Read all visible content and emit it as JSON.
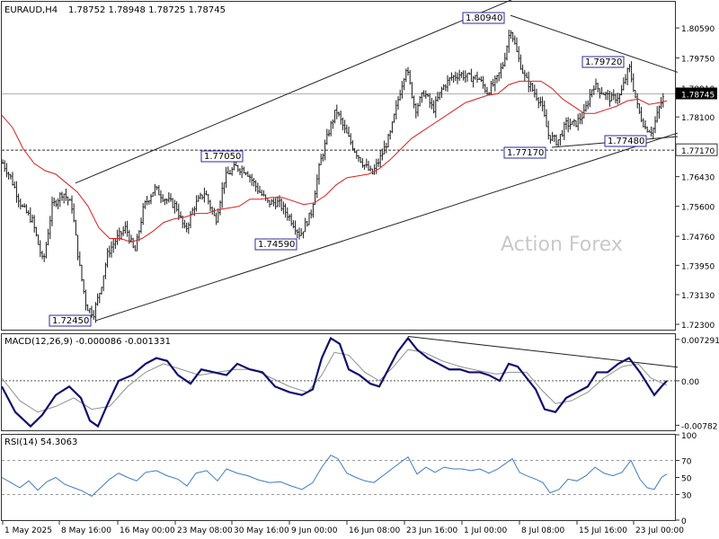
{
  "header": {
    "symbol": "EURAUD,H4",
    "ohlc": "1.78752 1.78948 1.78725 1.78745"
  },
  "watermark": "Action Forex",
  "colors": {
    "candle": "#1a1a1a",
    "ma": "#d62020",
    "macd": "#10106e",
    "signal": "#909090",
    "rsi": "#3c7bc8",
    "trendline": "#222222",
    "label_border": "#2a2aa0",
    "current_price_bg": "#000000"
  },
  "chart_data": [
    {
      "type": "candlestick",
      "title": "EURAUD,H4",
      "ylim": [
        1.7215,
        1.8132
      ],
      "y_ticks": [
        "1.80590",
        "1.79750",
        "1.78910",
        "1.78100",
        "1.77170",
        "1.76430",
        "1.75600",
        "1.74760",
        "1.73950",
        "1.73130",
        "1.72300"
      ],
      "x_ticks": [
        "1 May 2025",
        "8 May 16:00",
        "16 May 00:00",
        "23 May 08:00",
        "30 May 16:00",
        "9 Jun 00:00",
        "16 Jun 08:00",
        "23 Jun 16:00",
        "1 Jul 00:00",
        "8 Jul 08:00",
        "15 Jul 16:00",
        "23 Jul 00:00"
      ],
      "current_price": "1.78745",
      "horizontal_level": "1.77170",
      "annotations": [
        {
          "label": "1.72450",
          "value": 1.7245
        },
        {
          "label": "1.77050",
          "value": 1.7705
        },
        {
          "label": "1.74590",
          "value": 1.7459
        },
        {
          "label": "1.80940",
          "value": 1.8094
        },
        {
          "label": "1.77170",
          "value": 1.7717
        },
        {
          "label": "1.79720",
          "value": 1.7972
        },
        {
          "label": "1.77480",
          "value": 1.7748
        }
      ],
      "close_path": [
        [
          0,
          1.7695
        ],
        [
          12,
          1.764
        ],
        [
          24,
          1.756
        ],
        [
          36,
          1.752
        ],
        [
          48,
          1.74
        ],
        [
          58,
          1.756
        ],
        [
          70,
          1.76
        ],
        [
          80,
          1.756
        ],
        [
          88,
          1.74
        ],
        [
          96,
          1.728
        ],
        [
          104,
          1.726
        ],
        [
          112,
          1.733
        ],
        [
          120,
          1.743
        ],
        [
          130,
          1.747
        ],
        [
          140,
          1.75
        ],
        [
          150,
          1.743
        ],
        [
          160,
          1.756
        ],
        [
          172,
          1.761
        ],
        [
          184,
          1.758
        ],
        [
          196,
          1.756
        ],
        [
          206,
          1.749
        ],
        [
          216,
          1.756
        ],
        [
          228,
          1.76
        ],
        [
          240,
          1.752
        ],
        [
          250,
          1.764
        ],
        [
          262,
          1.767
        ],
        [
          274,
          1.766
        ],
        [
          286,
          1.761
        ],
        [
          298,
          1.757
        ],
        [
          310,
          1.757
        ],
        [
          322,
          1.753
        ],
        [
          334,
          1.748
        ],
        [
          346,
          1.754
        ],
        [
          356,
          1.768
        ],
        [
          366,
          1.777
        ],
        [
          374,
          1.783
        ],
        [
          384,
          1.777
        ],
        [
          394,
          1.772
        ],
        [
          404,
          1.768
        ],
        [
          414,
          1.765
        ],
        [
          424,
          1.77
        ],
        [
          434,
          1.776
        ],
        [
          444,
          1.787
        ],
        [
          452,
          1.795
        ],
        [
          462,
          1.783
        ],
        [
          472,
          1.788
        ],
        [
          482,
          1.783
        ],
        [
          492,
          1.789
        ],
        [
          502,
          1.792
        ],
        [
          512,
          1.793
        ],
        [
          522,
          1.792
        ],
        [
          532,
          1.792
        ],
        [
          542,
          1.788
        ],
        [
          552,
          1.791
        ],
        [
          560,
          1.796
        ],
        [
          568,
          1.806
        ],
        [
          576,
          1.798
        ],
        [
          584,
          1.792
        ],
        [
          594,
          1.788
        ],
        [
          602,
          1.785
        ],
        [
          610,
          1.776
        ],
        [
          620,
          1.774
        ],
        [
          630,
          1.779
        ],
        [
          640,
          1.779
        ],
        [
          650,
          1.782
        ],
        [
          660,
          1.79
        ],
        [
          670,
          1.788
        ],
        [
          680,
          1.786
        ],
        [
          690,
          1.787
        ],
        [
          700,
          1.795
        ],
        [
          710,
          1.783
        ],
        [
          718,
          1.778
        ],
        [
          726,
          1.777
        ],
        [
          734,
          1.784
        ],
        [
          740,
          1.7875
        ]
      ],
      "ma_path": [
        [
          0,
          1.7815
        ],
        [
          12,
          1.778
        ],
        [
          24,
          1.772
        ],
        [
          36,
          1.768
        ],
        [
          48,
          1.766
        ],
        [
          60,
          1.765
        ],
        [
          72,
          1.7625
        ],
        [
          84,
          1.76
        ],
        [
          96,
          1.756
        ],
        [
          108,
          1.75
        ],
        [
          120,
          1.747
        ],
        [
          132,
          1.747
        ],
        [
          144,
          1.746
        ],
        [
          156,
          1.747
        ],
        [
          168,
          1.749
        ],
        [
          180,
          1.7515
        ],
        [
          192,
          1.7525
        ],
        [
          204,
          1.753
        ],
        [
          216,
          1.754
        ],
        [
          228,
          1.754
        ],
        [
          240,
          1.755
        ],
        [
          252,
          1.7555
        ],
        [
          264,
          1.756
        ],
        [
          276,
          1.758
        ],
        [
          288,
          1.758
        ],
        [
          300,
          1.7585
        ],
        [
          312,
          1.7585
        ],
        [
          324,
          1.7575
        ],
        [
          336,
          1.7565
        ],
        [
          348,
          1.757
        ],
        [
          360,
          1.759
        ],
        [
          372,
          1.762
        ],
        [
          384,
          1.764
        ],
        [
          396,
          1.7645
        ],
        [
          408,
          1.765
        ],
        [
          420,
          1.7665
        ],
        [
          432,
          1.769
        ],
        [
          444,
          1.772
        ],
        [
          456,
          1.775
        ],
        [
          468,
          1.777
        ],
        [
          480,
          1.779
        ],
        [
          492,
          1.781
        ],
        [
          504,
          1.783
        ],
        [
          516,
          1.785
        ],
        [
          528,
          1.786
        ],
        [
          540,
          1.787
        ],
        [
          552,
          1.7875
        ],
        [
          564,
          1.79
        ],
        [
          576,
          1.791
        ],
        [
          588,
          1.791
        ],
        [
          600,
          1.791
        ],
        [
          612,
          1.789
        ],
        [
          624,
          1.786
        ],
        [
          636,
          1.784
        ],
        [
          648,
          1.782
        ],
        [
          660,
          1.782
        ],
        [
          672,
          1.783
        ],
        [
          684,
          1.784
        ],
        [
          696,
          1.7855
        ],
        [
          708,
          1.786
        ],
        [
          720,
          1.7845
        ],
        [
          732,
          1.785
        ],
        [
          740,
          1.7855
        ]
      ],
      "trendlines": [
        {
          "from": [
            82,
            1.7625
          ],
          "to": [
            612,
            1.8185
          ]
        },
        {
          "from": [
            104,
            1.724
          ],
          "to": [
            752,
            1.7765
          ]
        },
        {
          "from": [
            566,
            1.8094
          ],
          "to": [
            752,
            1.7935
          ]
        },
        {
          "from": [
            612,
            1.7725
          ],
          "to": [
            752,
            1.7755
          ]
        }
      ]
    },
    {
      "type": "line",
      "title": "MACD(12,26,9) -0.000086 -0.001331",
      "ylim": [
        -0.0087,
        0.0082
      ],
      "y_ticks": [
        "0.007291",
        "0.00",
        "-0.00782"
      ],
      "zero_line": 0,
      "macd_path": [
        [
          0,
          -0.001
        ],
        [
          15,
          -0.0055
        ],
        [
          32,
          -0.008
        ],
        [
          45,
          -0.006
        ],
        [
          60,
          -0.0025
        ],
        [
          75,
          -0.001
        ],
        [
          88,
          -0.003
        ],
        [
          98,
          -0.007
        ],
        [
          107,
          -0.008
        ],
        [
          118,
          -0.004
        ],
        [
          130,
          0.0
        ],
        [
          145,
          0.001
        ],
        [
          160,
          0.003
        ],
        [
          172,
          0.004
        ],
        [
          184,
          0.0035
        ],
        [
          196,
          0.001
        ],
        [
          210,
          -0.0005
        ],
        [
          222,
          0.002
        ],
        [
          236,
          0.0015
        ],
        [
          250,
          0.001
        ],
        [
          262,
          0.003
        ],
        [
          276,
          0.002
        ],
        [
          290,
          0.0015
        ],
        [
          304,
          -0.001
        ],
        [
          320,
          -0.002
        ],
        [
          334,
          -0.0025
        ],
        [
          346,
          -0.0015
        ],
        [
          356,
          0.004
        ],
        [
          366,
          0.0075
        ],
        [
          376,
          0.0065
        ],
        [
          386,
          0.002
        ],
        [
          398,
          0.001
        ],
        [
          410,
          -0.0005
        ],
        [
          420,
          -0.001
        ],
        [
          430,
          0.002
        ],
        [
          440,
          0.005
        ],
        [
          452,
          0.0075
        ],
        [
          462,
          0.0055
        ],
        [
          474,
          0.004
        ],
        [
          486,
          0.003
        ],
        [
          498,
          0.002
        ],
        [
          510,
          0.002
        ],
        [
          520,
          0.0015
        ],
        [
          532,
          0.0015
        ],
        [
          542,
          0.001
        ],
        [
          554,
          0.0
        ],
        [
          564,
          0.003
        ],
        [
          574,
          0.0025
        ],
        [
          584,
          0.0005
        ],
        [
          594,
          -0.0015
        ],
        [
          604,
          -0.005
        ],
        [
          616,
          -0.0055
        ],
        [
          628,
          -0.003
        ],
        [
          640,
          -0.002
        ],
        [
          652,
          -0.001
        ],
        [
          662,
          0.0015
        ],
        [
          674,
          0.0015
        ],
        [
          686,
          0.003
        ],
        [
          698,
          0.004
        ],
        [
          710,
          0.0015
        ],
        [
          718,
          -0.0005
        ],
        [
          726,
          -0.0025
        ],
        [
          734,
          -0.001
        ],
        [
          740,
          0.0
        ]
      ],
      "signal_path": [
        [
          0,
          0.0005
        ],
        [
          20,
          -0.0035
        ],
        [
          40,
          -0.0055
        ],
        [
          60,
          -0.0045
        ],
        [
          80,
          -0.003
        ],
        [
          100,
          -0.005
        ],
        [
          120,
          -0.0045
        ],
        [
          140,
          -0.001
        ],
        [
          160,
          0.0015
        ],
        [
          180,
          0.003
        ],
        [
          200,
          0.002
        ],
        [
          220,
          0.001
        ],
        [
          240,
          0.0015
        ],
        [
          260,
          0.002
        ],
        [
          280,
          0.002
        ],
        [
          300,
          0.0005
        ],
        [
          320,
          -0.001
        ],
        [
          340,
          -0.002
        ],
        [
          356,
          0.001
        ],
        [
          370,
          0.005
        ],
        [
          386,
          0.0045
        ],
        [
          404,
          0.0015
        ],
        [
          420,
          0.0
        ],
        [
          436,
          0.0025
        ],
        [
          452,
          0.0055
        ],
        [
          470,
          0.005
        ],
        [
          490,
          0.0035
        ],
        [
          510,
          0.0025
        ],
        [
          530,
          0.0018
        ],
        [
          550,
          0.0012
        ],
        [
          566,
          0.0015
        ],
        [
          584,
          0.0015
        ],
        [
          600,
          -0.0015
        ],
        [
          616,
          -0.004
        ],
        [
          634,
          -0.0035
        ],
        [
          652,
          -0.002
        ],
        [
          670,
          0.0005
        ],
        [
          690,
          0.0025
        ],
        [
          708,
          0.003
        ],
        [
          722,
          0.0005
        ],
        [
          740,
          -0.0008
        ]
      ],
      "trendline": {
        "from": [
          452,
          0.0078
        ],
        "to": [
          752,
          0.0024
        ]
      }
    },
    {
      "type": "line",
      "title": "RSI(14) 54.3063",
      "ylim": [
        0,
        100
      ],
      "y_ticks": [
        "100",
        "70",
        "50",
        "30",
        "0"
      ],
      "levels": [
        70,
        30
      ],
      "rsi_path": [
        [
          0,
          50
        ],
        [
          10,
          44
        ],
        [
          20,
          38
        ],
        [
          30,
          46
        ],
        [
          40,
          35
        ],
        [
          50,
          45
        ],
        [
          60,
          50
        ],
        [
          70,
          42
        ],
        [
          80,
          38
        ],
        [
          90,
          34
        ],
        [
          100,
          28
        ],
        [
          110,
          38
        ],
        [
          120,
          48
        ],
        [
          130,
          55
        ],
        [
          140,
          50
        ],
        [
          150,
          46
        ],
        [
          160,
          56
        ],
        [
          172,
          58
        ],
        [
          184,
          52
        ],
        [
          196,
          48
        ],
        [
          206,
          40
        ],
        [
          216,
          55
        ],
        [
          228,
          58
        ],
        [
          240,
          46
        ],
        [
          250,
          60
        ],
        [
          262,
          55
        ],
        [
          274,
          52
        ],
        [
          286,
          47
        ],
        [
          298,
          44
        ],
        [
          310,
          45
        ],
        [
          322,
          40
        ],
        [
          334,
          36
        ],
        [
          346,
          44
        ],
        [
          356,
          62
        ],
        [
          366,
          76
        ],
        [
          374,
          72
        ],
        [
          384,
          55
        ],
        [
          394,
          50
        ],
        [
          404,
          46
        ],
        [
          414,
          44
        ],
        [
          424,
          52
        ],
        [
          434,
          60
        ],
        [
          444,
          68
        ],
        [
          452,
          74
        ],
        [
          462,
          54
        ],
        [
          472,
          62
        ],
        [
          482,
          56
        ],
        [
          492,
          62
        ],
        [
          502,
          60
        ],
        [
          512,
          60
        ],
        [
          522,
          58
        ],
        [
          532,
          60
        ],
        [
          542,
          55
        ],
        [
          552,
          60
        ],
        [
          560,
          66
        ],
        [
          568,
          72
        ],
        [
          576,
          56
        ],
        [
          584,
          52
        ],
        [
          594,
          48
        ],
        [
          602,
          44
        ],
        [
          610,
          32
        ],
        [
          620,
          36
        ],
        [
          630,
          48
        ],
        [
          640,
          46
        ],
        [
          650,
          52
        ],
        [
          660,
          62
        ],
        [
          670,
          55
        ],
        [
          680,
          52
        ],
        [
          690,
          56
        ],
        [
          700,
          70
        ],
        [
          710,
          48
        ],
        [
          718,
          38
        ],
        [
          726,
          36
        ],
        [
          734,
          50
        ],
        [
          740,
          54
        ]
      ]
    }
  ]
}
